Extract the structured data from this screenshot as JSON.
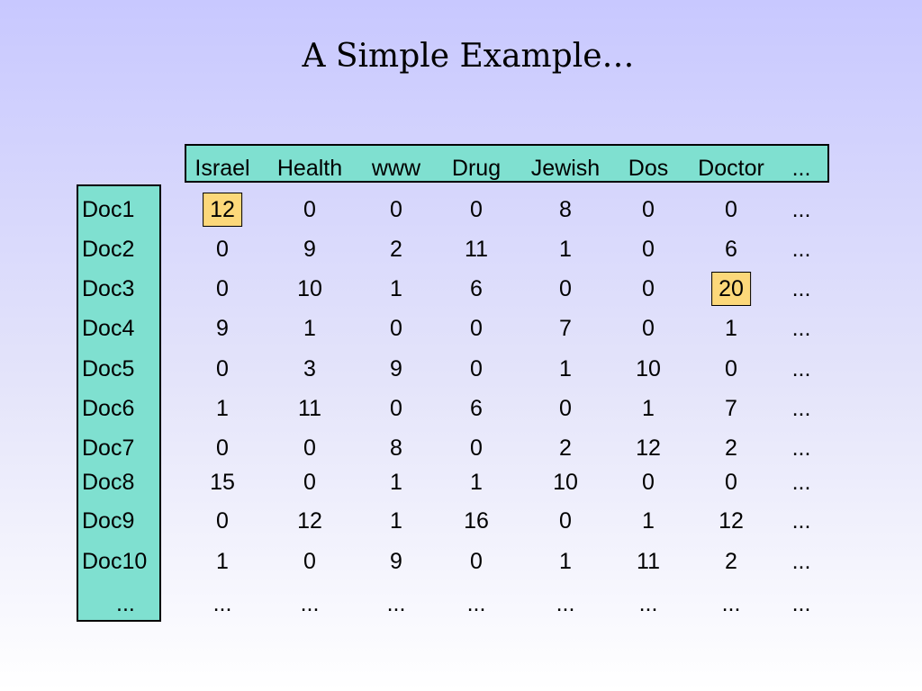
{
  "title": "A  Simple Example…",
  "columns": [
    "Israel",
    "Health",
    "www",
    "Drug",
    "Jewish",
    "Dos",
    "Doctor",
    "..."
  ],
  "rows": [
    {
      "label": "Doc1",
      "values": [
        "12",
        "0",
        "0",
        "0",
        "8",
        "0",
        "0",
        "..."
      ]
    },
    {
      "label": "Doc2",
      "values": [
        "0",
        "9",
        "2",
        "11",
        "1",
        "0",
        "6",
        "..."
      ]
    },
    {
      "label": "Doc3",
      "values": [
        "0",
        "10",
        "1",
        "6",
        "0",
        "0",
        "20",
        "..."
      ]
    },
    {
      "label": "Doc4",
      "values": [
        "9",
        "1",
        "0",
        "0",
        "7",
        "0",
        "1",
        "..."
      ]
    },
    {
      "label": "Doc5",
      "values": [
        "0",
        "3",
        "9",
        "0",
        "1",
        "10",
        "0",
        "..."
      ]
    },
    {
      "label": "Doc6",
      "values": [
        "1",
        "11",
        "0",
        "6",
        "0",
        "1",
        "7",
        "..."
      ]
    },
    {
      "label": "Doc7",
      "values": [
        "0",
        "0",
        "8",
        "0",
        "2",
        "12",
        "2",
        "..."
      ]
    },
    {
      "label": "Doc8",
      "values": [
        "15",
        "0",
        "1",
        "1",
        "10",
        "0",
        "0",
        "..."
      ]
    },
    {
      "label": "Doc9",
      "values": [
        "0",
        "12",
        "1",
        "16",
        "0",
        "1",
        "12",
        "..."
      ]
    },
    {
      "label": "Doc10",
      "values": [
        "1",
        "0",
        "9",
        "0",
        "1",
        "11",
        "2",
        "..."
      ]
    },
    {
      "label": "...",
      "values": [
        "...",
        "...",
        "...",
        "...",
        "...",
        "...",
        "...",
        "..."
      ]
    }
  ],
  "highlight_color": "#fcd87a",
  "box_color": "#7fe0d0"
}
